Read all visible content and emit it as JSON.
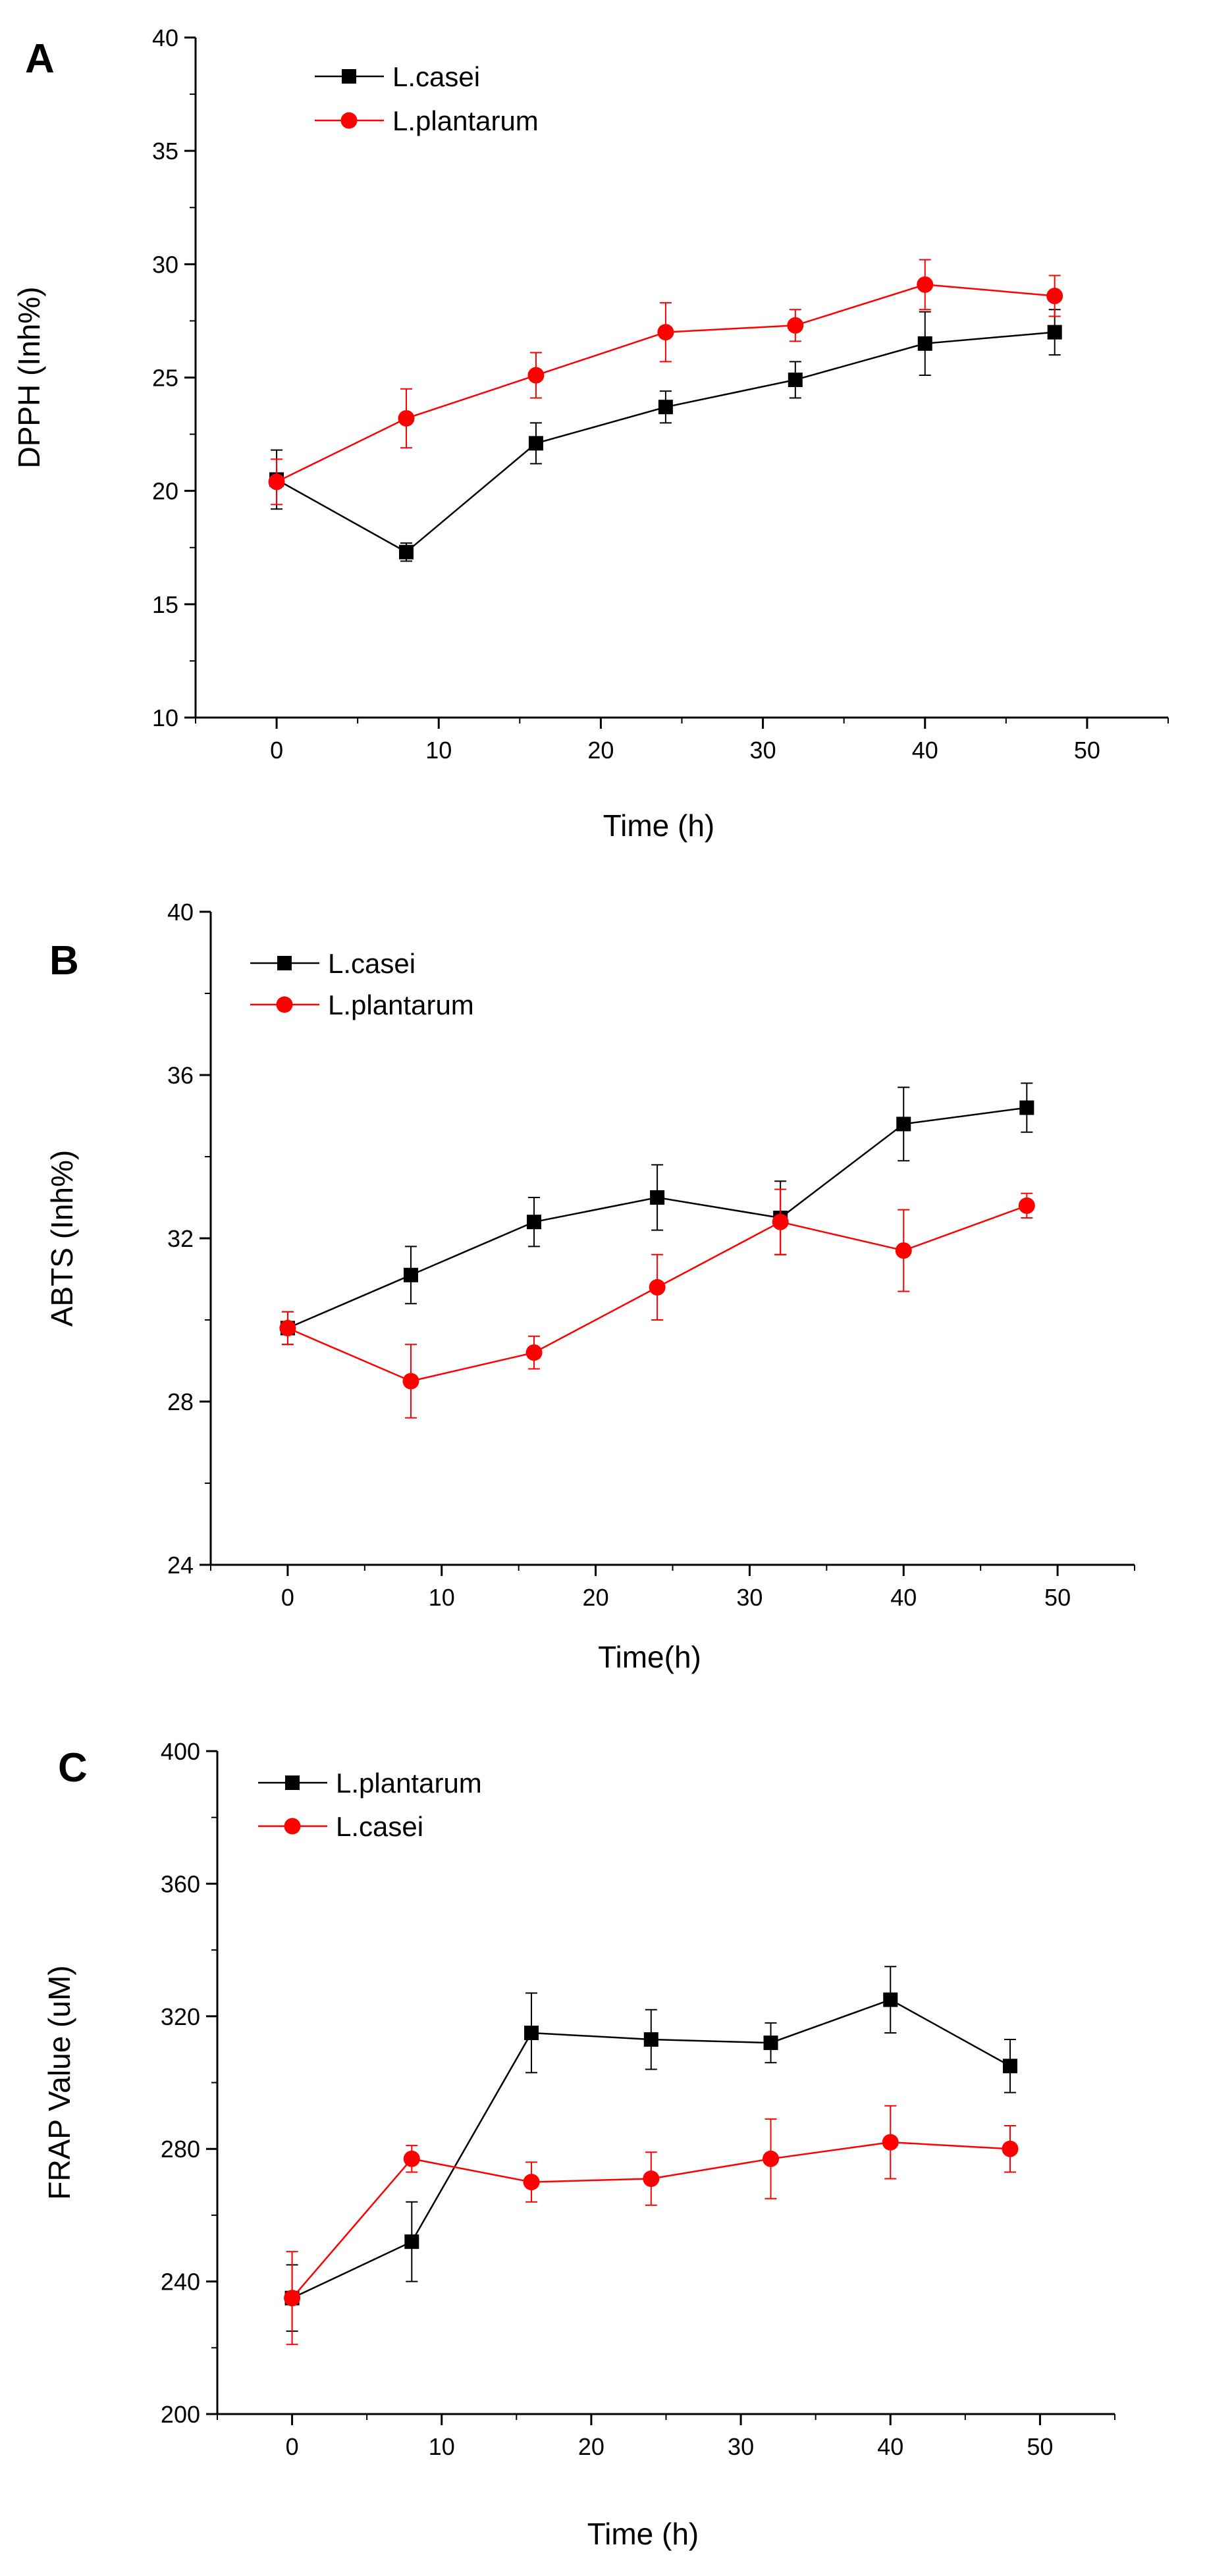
{
  "figure": {
    "name": "antioxidant-activity-figure"
  },
  "chart_data": [
    {
      "panel": "A",
      "type": "line",
      "ylabel": "DPPH (Inh%)",
      "xlabel": "Time (h)",
      "xlim": [
        -5,
        55
      ],
      "ylim": [
        10,
        40
      ],
      "xticks": [
        0,
        10,
        20,
        30,
        40,
        50
      ],
      "yticks": [
        10,
        15,
        20,
        25,
        30,
        35,
        40
      ],
      "x_minor": 5,
      "y_minor": 2.5,
      "legend_position": "top-left",
      "series": [
        {
          "name": "L.casei",
          "color": "#000000",
          "marker": "square",
          "x": [
            0,
            8,
            16,
            24,
            32,
            40,
            48
          ],
          "values": [
            20.5,
            17.3,
            22.1,
            23.7,
            24.9,
            26.5,
            27.0
          ],
          "errors": [
            1.3,
            0.4,
            0.9,
            0.7,
            0.8,
            1.4,
            1.0
          ]
        },
        {
          "name": "L.plantarum",
          "color": "#ff0000",
          "marker": "circle",
          "x": [
            0,
            8,
            16,
            24,
            32,
            40,
            48
          ],
          "values": [
            20.4,
            23.2,
            25.1,
            27.0,
            27.3,
            29.1,
            28.6
          ],
          "errors": [
            1.0,
            1.3,
            1.0,
            1.3,
            0.7,
            1.1,
            0.9
          ]
        }
      ]
    },
    {
      "panel": "B",
      "type": "line",
      "ylabel": "ABTS (Inh%)",
      "xlabel": "Time(h)",
      "xlim": [
        -5,
        55
      ],
      "ylim": [
        24,
        40
      ],
      "xticks": [
        0,
        10,
        20,
        30,
        40,
        50
      ],
      "yticks": [
        24,
        28,
        32,
        36,
        40
      ],
      "x_minor": 5,
      "y_minor": 2,
      "legend_position": "top-left",
      "series": [
        {
          "name": "L.casei",
          "color": "#000000",
          "marker": "square",
          "x": [
            0,
            8,
            16,
            24,
            32,
            40,
            48
          ],
          "values": [
            29.8,
            31.1,
            32.4,
            33.0,
            32.5,
            34.8,
            35.2
          ],
          "errors": [
            0.4,
            0.7,
            0.6,
            0.8,
            0.9,
            0.9,
            0.6
          ]
        },
        {
          "name": "L.plantarum",
          "color": "#ff0000",
          "marker": "circle",
          "x": [
            0,
            8,
            16,
            24,
            32,
            40,
            48
          ],
          "values": [
            29.8,
            28.5,
            29.2,
            30.8,
            32.4,
            31.7,
            32.8
          ],
          "errors": [
            0.4,
            0.9,
            0.4,
            0.8,
            0.8,
            1.0,
            0.3
          ]
        }
      ]
    },
    {
      "panel": "C",
      "type": "line",
      "ylabel": "FRAP Value (uM)",
      "xlabel": "Time (h)",
      "xlim": [
        -5,
        55
      ],
      "ylim": [
        200,
        400
      ],
      "xticks": [
        0,
        10,
        20,
        30,
        40,
        50
      ],
      "yticks": [
        200,
        240,
        280,
        320,
        360,
        400
      ],
      "x_minor": 5,
      "y_minor": 20,
      "legend_position": "top-left",
      "series": [
        {
          "name": "L.plantarum",
          "color": "#000000",
          "marker": "square",
          "x": [
            0,
            8,
            16,
            24,
            32,
            40,
            48
          ],
          "values": [
            235,
            252,
            315,
            313,
            312,
            325,
            305
          ],
          "errors": [
            10,
            12,
            12,
            9,
            6,
            10,
            8
          ]
        },
        {
          "name": "L.casei",
          "color": "#ff0000",
          "marker": "circle",
          "x": [
            0,
            8,
            16,
            24,
            32,
            40,
            48
          ],
          "values": [
            235,
            277,
            270,
            271,
            277,
            282,
            280
          ],
          "errors": [
            14,
            4,
            6,
            8,
            12,
            11,
            7
          ]
        }
      ]
    }
  ]
}
